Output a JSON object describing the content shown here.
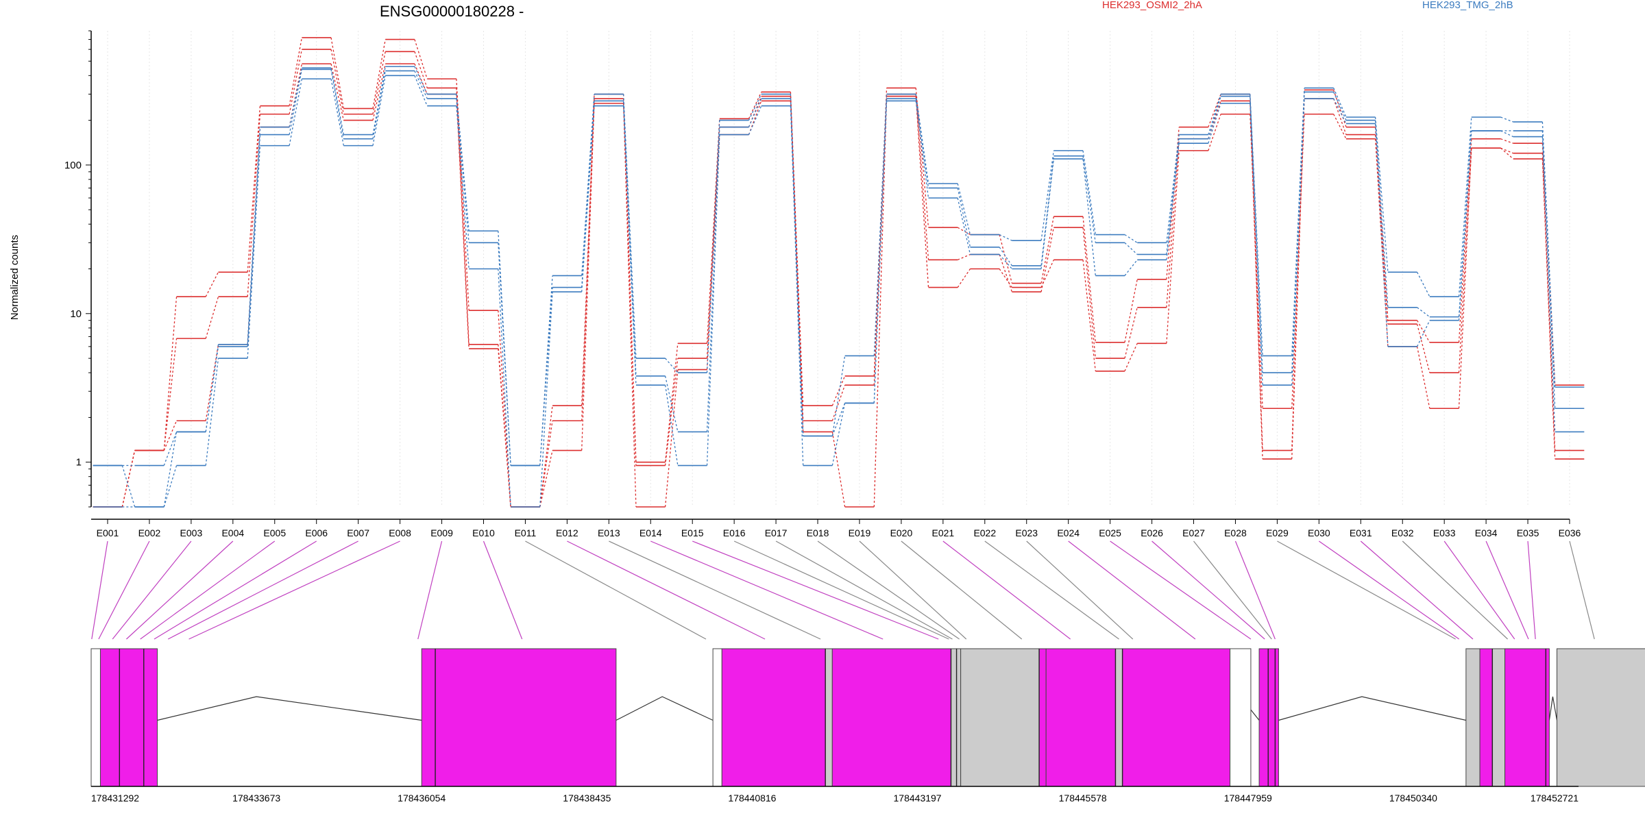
{
  "chart_data": {
    "type": "line",
    "title": "ENSG00000180228 -",
    "ylabel": "Normalized counts",
    "yscale": "log",
    "ylim": [
      0.5,
      800
    ],
    "yticks": [
      1,
      10,
      100
    ],
    "ytick_labels": [
      "1",
      "10",
      "100"
    ],
    "colors": {
      "HEK293_OSMI2_2hA": "#dc2d2d",
      "HEK293_TMG_2hB": "#3b7bbf",
      "exon_tested": "#f01ee9",
      "exon_untested": "#cccccc",
      "connector_tested": "#c03fc0",
      "connector_untested": "#888888"
    },
    "legend": [
      {
        "name": "HEK293_OSMI2_2hA",
        "color": "#dc2d2d"
      },
      {
        "name": "HEK293_TMG_2hB",
        "color": "#3b7bbf"
      }
    ],
    "categories": [
      "E001",
      "E002",
      "E003",
      "E004",
      "E005",
      "E006",
      "E007",
      "E008",
      "E009",
      "E010",
      "E011",
      "E012",
      "E013",
      "E014",
      "E015",
      "E016",
      "E017",
      "E018",
      "E019",
      "E020",
      "E021",
      "E022",
      "E023",
      "E024",
      "E025",
      "E026",
      "E027",
      "E028",
      "E029",
      "E030",
      "E031",
      "E032",
      "E033",
      "E034",
      "E035",
      "E036"
    ],
    "series": [
      {
        "name": "HEK293_OSMI2_2hA",
        "values": [
          0.5,
          1.2,
          13,
          19,
          250,
          720,
          240,
          700,
          380,
          10.5,
          0.5,
          2.4,
          300,
          1.0,
          6.3,
          205,
          310,
          2.4,
          3.8,
          330,
          38,
          34,
          16,
          45,
          6.4,
          17,
          180,
          300,
          1.2,
          320,
          180,
          9,
          6.4,
          150,
          140,
          3.3
        ]
      },
      {
        "name": "HEK293_OSMI2_2hA",
        "values": [
          0.5,
          1.2,
          6.8,
          13,
          220,
          600,
          220,
          580,
          330,
          6.2,
          0.5,
          1.9,
          280,
          0.95,
          5.0,
          180,
          290,
          1.9,
          3.3,
          300,
          23,
          25,
          14,
          38,
          5.0,
          11,
          150,
          270,
          1.05,
          280,
          160,
          8.5,
          4.0,
          130,
          120,
          1.2
        ]
      },
      {
        "name": "HEK293_OSMI2_2hA",
        "values": [
          0.5,
          1.2,
          1.9,
          6.2,
          180,
          480,
          200,
          480,
          300,
          5.8,
          0.5,
          1.2,
          260,
          0.5,
          4.2,
          160,
          270,
          1.6,
          0.5,
          290,
          15,
          20,
          15,
          23,
          4.1,
          6.3,
          125,
          220,
          2.3,
          220,
          150,
          6.0,
          2.3,
          130,
          110,
          1.05
        ]
      },
      {
        "name": "HEK293_TMG_2hB",
        "values": [
          0.95,
          0.95,
          1.6,
          6.2,
          180,
          450,
          160,
          460,
          300,
          36,
          0.95,
          18,
          300,
          5.0,
          4.0,
          200,
          300,
          1.5,
          5.2,
          300,
          75,
          34,
          31,
          125,
          34,
          30,
          160,
          300,
          5.2,
          330,
          210,
          19,
          13,
          210,
          195,
          3.2
        ]
      },
      {
        "name": "HEK293_TMG_2hB",
        "values": [
          0.95,
          0.5,
          1.6,
          6.0,
          160,
          440,
          150,
          430,
          280,
          30,
          0.95,
          15,
          270,
          3.8,
          1.6,
          180,
          280,
          1.5,
          2.5,
          280,
          70,
          28,
          21,
          115,
          30,
          25,
          150,
          290,
          4.0,
          310,
          200,
          11,
          9.5,
          170,
          170,
          2.3
        ]
      },
      {
        "name": "HEK293_TMG_2hB",
        "values": [
          0.5,
          0.5,
          0.95,
          5.0,
          135,
          380,
          135,
          400,
          250,
          20,
          0.5,
          14,
          250,
          3.3,
          0.95,
          160,
          250,
          0.95,
          2.5,
          270,
          60,
          25,
          20,
          110,
          18,
          23,
          140,
          260,
          3.3,
          280,
          190,
          6.0,
          9.0,
          170,
          155,
          1.6
        ]
      }
    ],
    "exons_tested": [
      true,
      true,
      true,
      true,
      true,
      true,
      true,
      true,
      true,
      true,
      false,
      true,
      false,
      true,
      true,
      false,
      false,
      false,
      false,
      false,
      true,
      false,
      false,
      true,
      true,
      true,
      false,
      true,
      false,
      true,
      true,
      false,
      true,
      true,
      true,
      false
    ],
    "genomic_ticks": [
      178431292,
      178433673,
      178436054,
      178438435,
      178440816,
      178443197,
      178445578,
      178447959,
      178450340,
      178452721
    ],
    "genomic_tick_labels": [
      "178431292",
      "178433673",
      "178436054",
      "178438435",
      "178440816",
      "178443197",
      "178445578",
      "178447959",
      "178450340",
      "178452721"
    ],
    "exon_blocks": [
      {
        "start": 178431292,
        "end": 178431425,
        "fill": "#ffffff"
      },
      {
        "start": 178431425,
        "end": 178432245,
        "fill": "#f01ee9"
      },
      {
        "start": 178436054,
        "end": 178438855,
        "fill": "#f01ee9"
      },
      {
        "start": 178440250,
        "end": 178440380,
        "fill": "#ffffff"
      },
      {
        "start": 178440380,
        "end": 178441870,
        "fill": "#f01ee9"
      },
      {
        "start": 178441870,
        "end": 178441970,
        "fill": "#cccccc"
      },
      {
        "start": 178441970,
        "end": 178443680,
        "fill": "#f01ee9"
      },
      {
        "start": 178443680,
        "end": 178443820,
        "fill": "#cccccc"
      },
      {
        "start": 178443820,
        "end": 178444950,
        "fill": "#cccccc"
      },
      {
        "start": 178444950,
        "end": 178445050,
        "fill": "#f01ee9"
      },
      {
        "start": 178445050,
        "end": 178446050,
        "fill": "#f01ee9"
      },
      {
        "start": 178446050,
        "end": 178446150,
        "fill": "#cccccc"
      },
      {
        "start": 178446150,
        "end": 178447700,
        "fill": "#f01ee9"
      },
      {
        "start": 178447700,
        "end": 178448000,
        "fill": "#ffffff"
      },
      {
        "start": 178448120,
        "end": 178448400,
        "fill": "#f01ee9"
      },
      {
        "start": 178451100,
        "end": 178451300,
        "fill": "#cccccc"
      },
      {
        "start": 178451300,
        "end": 178451480,
        "fill": "#f01ee9"
      },
      {
        "start": 178451480,
        "end": 178451660,
        "fill": "#cccccc"
      },
      {
        "start": 178451660,
        "end": 178452300,
        "fill": "#f01ee9"
      },
      {
        "start": 178452410,
        "end": 178453900,
        "fill": "#cccccc"
      }
    ],
    "exon_dividers": [
      178431700,
      178432050,
      178436250,
      178441870,
      178443680,
      178443760,
      178444950,
      178446050,
      178446150,
      178448250,
      178448350,
      178451480,
      178452250
    ],
    "exon_connector_targets": [
      178431300,
      178431400,
      178431600,
      178431800,
      178432000,
      178432200,
      178432400,
      178432700,
      178436000,
      178437500,
      178440150,
      178441000,
      178441800,
      178442700,
      178443500,
      178443650,
      178443700,
      178443800,
      178443900,
      178444700,
      178445400,
      178446100,
      178446300,
      178447200,
      178448000,
      178448200,
      178448300,
      178448350,
      178450950,
      178451000,
      178451200,
      178451700,
      178451800,
      178452000,
      178452100,
      178452950
    ],
    "introns": [
      {
        "start": 178432245,
        "end": 178436054,
        "peak_pos": 178433673
      },
      {
        "start": 178438855,
        "end": 178440250,
        "peak_pos": 178439520
      },
      {
        "start": 178447700,
        "end": 178448120,
        "peak_pos": 178447850
      },
      {
        "start": 178448400,
        "end": 178451100,
        "peak_pos": 178449600
      },
      {
        "start": 178452300,
        "end": 178452410,
        "peak_pos": 178452350
      }
    ]
  }
}
